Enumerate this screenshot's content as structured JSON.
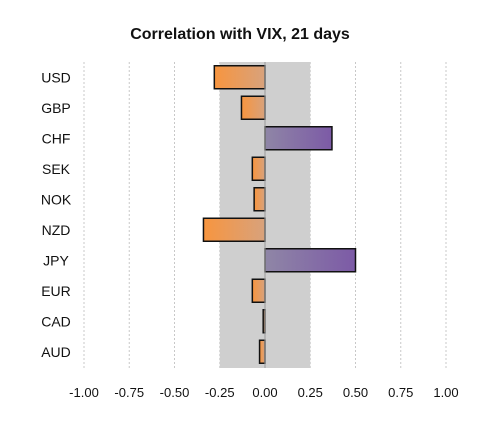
{
  "chart_data": {
    "type": "bar",
    "orientation": "horizontal",
    "title": "Correlation with VIX, 21 days",
    "xlabel": "",
    "ylabel": "",
    "categories": [
      "USD",
      "GBP",
      "CHF",
      "SEK",
      "NOK",
      "NZD",
      "JPY",
      "EUR",
      "CAD",
      "AUD"
    ],
    "values": [
      -0.28,
      -0.13,
      0.37,
      -0.07,
      -0.06,
      -0.34,
      0.5,
      -0.07,
      -0.01,
      -0.03
    ],
    "xlim": [
      -1.0,
      1.0
    ],
    "x_ticks": [
      "-1.00",
      "-0.75",
      "-0.50",
      "-0.25",
      "0.00",
      "0.25",
      "0.50",
      "0.75",
      "1.00"
    ],
    "x_tick_values": [
      -1.0,
      -0.75,
      -0.5,
      -0.25,
      0.0,
      0.25,
      0.5,
      0.75,
      1.0
    ],
    "grid": "vertical dashed",
    "legend": "none",
    "shaded_band": {
      "from": -0.25,
      "to": 0.25,
      "color": "#cfcfcf"
    },
    "colors": {
      "negative": "#f5974a",
      "positive": "#7c5aa6",
      "band": "#cfcfcf",
      "border": "#111111",
      "grid": "#c8c8c8"
    }
  }
}
